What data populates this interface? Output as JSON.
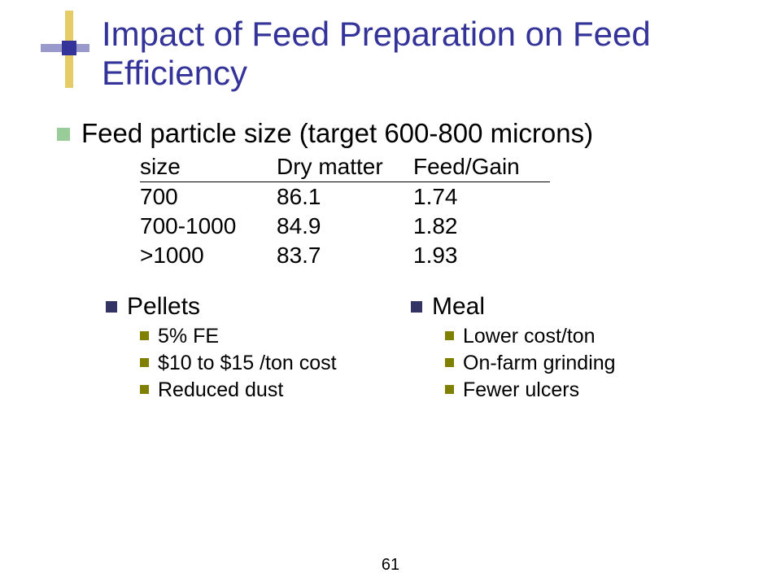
{
  "colors": {
    "title": "#333399",
    "bullet_l1": "#99cc99",
    "bullet_l2": "#333366",
    "bullet_l3": "#808000",
    "deco_h": "#9999cc",
    "deco_v": "#e6cc66",
    "deco_sq": "#333399",
    "text": "#000000",
    "background": "#ffffff"
  },
  "title": "Impact of Feed Preparation on Feed Efficiency",
  "main_bullet": "Feed particle size (target 600-800 microns)",
  "table": {
    "headers": [
      "size",
      "Dry matter",
      "Feed/Gain"
    ],
    "rows": [
      [
        "700",
        "86.1",
        "1.74"
      ],
      [
        "700-1000",
        "84.9",
        "1.82"
      ],
      [
        ">1000",
        "83.7",
        "1.93"
      ]
    ]
  },
  "columns": {
    "left": {
      "heading": "Pellets",
      "items": [
        "5% FE",
        "$10 to $15 /ton cost",
        "Reduced dust"
      ]
    },
    "right": {
      "heading": "Meal",
      "items": [
        "Lower cost/ton",
        "On-farm grinding",
        "Fewer ulcers"
      ]
    }
  },
  "slide_number": "61",
  "fonts": {
    "title_size": 42,
    "lvl1_size": 33,
    "table_size": 28,
    "lvl2_size": 30,
    "lvl3_size": 25,
    "number_size": 20
  }
}
